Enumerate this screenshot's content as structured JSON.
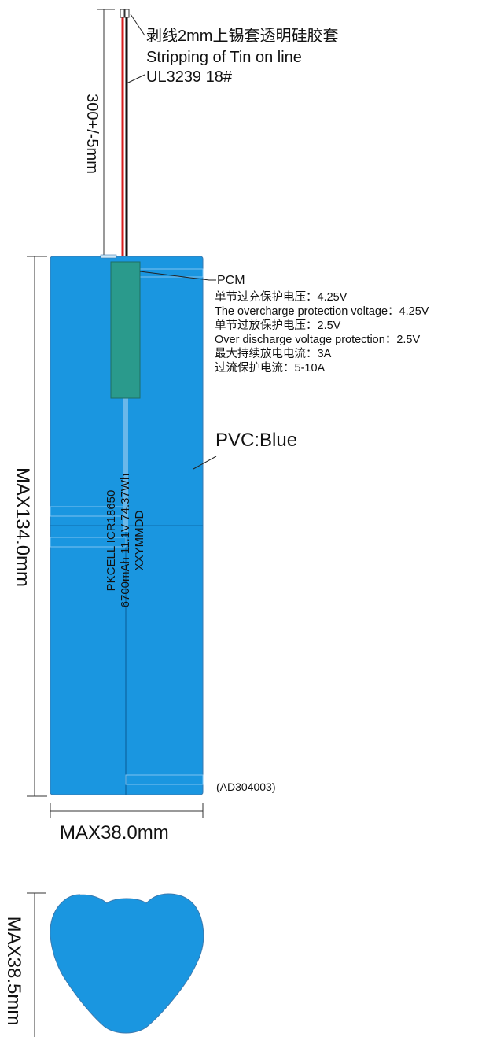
{
  "wire": {
    "label_cn": "剥线2mm上锡套透明硅胶套",
    "label_en": "Stripping of Tin on line",
    "spec": "UL3239 18#",
    "length": "300+/-5mm"
  },
  "pcm": {
    "title": "PCM",
    "specs": [
      "单节过充保护电压：4.25V",
      "The overcharge protection voltage：4.25V",
      "单节过放保护电压：2.5V",
      "Over discharge voltage protection：2.5V",
      "最大持续放电电流：3A",
      "过流保护电流：5-10A"
    ]
  },
  "pvc": "PVC:Blue",
  "cell_label": [
    "PKCELL ICR18650",
    "6700mAh 11.1V 74.37Wh",
    "XXYMMDD"
  ],
  "dimensions": {
    "height": "MAX134.0mm",
    "width": "MAX38.0mm",
    "thickness": "MAX38.5mm"
  },
  "part_code": "(AD304003)",
  "colors": {
    "pvc": "#1a96e0",
    "pcm": "#2a9a8c",
    "wire_red": "#d81e1e",
    "wire_black": "#111111"
  }
}
